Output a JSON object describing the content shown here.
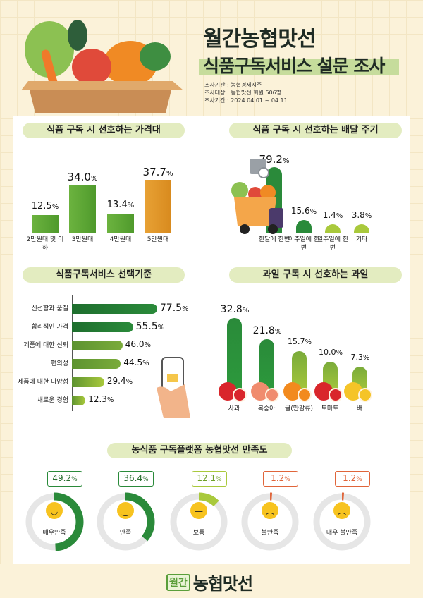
{
  "header": {
    "title": "월간농협맛선",
    "subtitle": "식품구독서비스 설문 조사",
    "info": [
      "조사기관 : 농협경제지주",
      "조사대상 : 농협맛선 회원 506명",
      "조사기간 : 2024.04.01 ~ 04.11"
    ]
  },
  "colors": {
    "green_dark": "#2a8a3a",
    "green_light": "#a9c93c",
    "orange": "#e8a235",
    "pill": "#e3ecc0",
    "gray_ring": "#e6e6e6",
    "red": "#e0653a"
  },
  "chart_data": [
    {
      "type": "bar",
      "title": "식품 구독 시 선호하는 가격대",
      "categories": [
        "2만원대 및 이하",
        "3만원대",
        "4만원대",
        "5만원대"
      ],
      "values": [
        12.5,
        34.0,
        13.4,
        37.7
      ],
      "unit": "%"
    },
    {
      "type": "bar",
      "title": "식품 구독 시 선호하는 배달 주기",
      "categories": [
        "한달에 한번",
        "이주일에 한번",
        "일주일에 한번",
        "기타"
      ],
      "values": [
        79.2,
        15.6,
        1.4,
        3.8
      ],
      "unit": "%"
    },
    {
      "type": "bar",
      "orientation": "horizontal",
      "title": "식품구독서비스 선택기준",
      "categories": [
        "신선함과 품질",
        "합리적인 가격",
        "제품에 대한 신뢰",
        "편의성",
        "제품에 대한 다양성",
        "새로운 경험"
      ],
      "values": [
        77.5,
        55.5,
        46.0,
        44.5,
        29.4,
        12.3
      ],
      "unit": "%"
    },
    {
      "type": "bar",
      "title": "과일 구독 시 선호하는 과일",
      "categories": [
        "사과",
        "복숭아",
        "귤(만감류)",
        "토마토",
        "배"
      ],
      "values": [
        32.8,
        21.8,
        15.7,
        10.0,
        7.3
      ],
      "unit": "%"
    },
    {
      "type": "pie",
      "style": "donut",
      "title": "농식품 구독플랫폼 농협맛선 만족도",
      "categories": [
        "매우만족",
        "만족",
        "보통",
        "불만족",
        "매우 불만족"
      ],
      "values": [
        49.2,
        36.4,
        12.1,
        1.2,
        1.2
      ],
      "unit": "%"
    }
  ],
  "footer": {
    "logo_box": "월간",
    "logo_name": "농협맛선"
  }
}
